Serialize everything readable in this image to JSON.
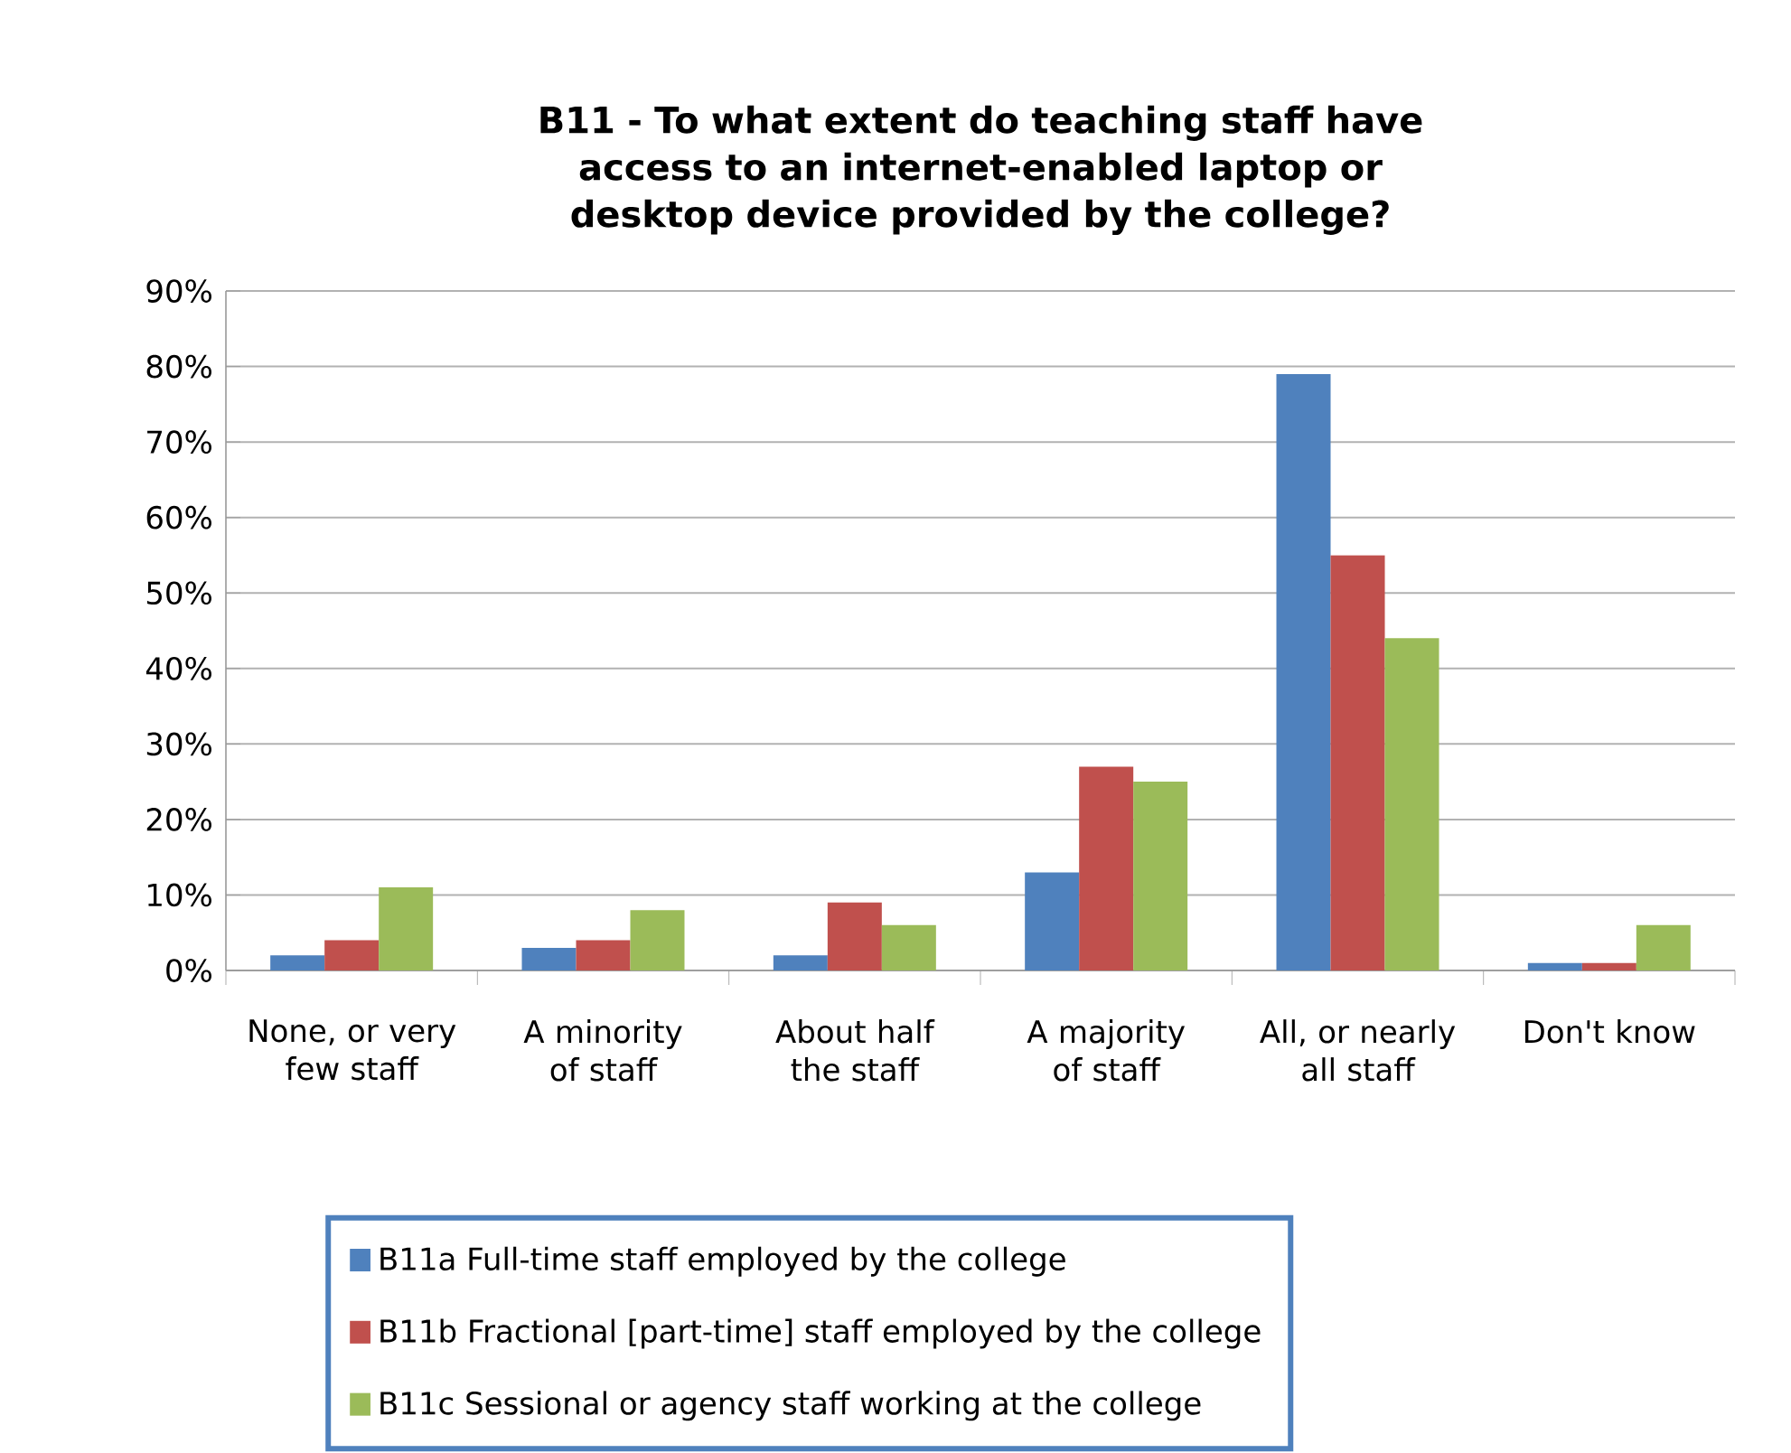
{
  "chart_data": {
    "type": "bar",
    "title": "B11 - To what extent do teaching staff have access to an internet-enabled laptop or desktop device provided by the college?",
    "categories": [
      "None, or very few staff",
      "A minority of staff",
      "About half the staff",
      "A majority of staff",
      "All, or nearly all staff",
      "Don't know"
    ],
    "series": [
      {
        "name": "B11a Full-time staff employed by the college",
        "color": "#4f81bd",
        "values": [
          2,
          3,
          2,
          13,
          79,
          1
        ]
      },
      {
        "name": "B11b Fractional [part-time] staff employed by the college",
        "color": "#c0504d",
        "values": [
          4,
          4,
          9,
          27,
          55,
          1
        ]
      },
      {
        "name": "B11c Sessional or agency staff working at the college",
        "color": "#9bbb59",
        "values": [
          11,
          8,
          6,
          25,
          44,
          6
        ]
      }
    ],
    "ylim": [
      0,
      90
    ],
    "yticks": [
      {
        "value": 0,
        "label": "0%"
      },
      {
        "value": 10,
        "label": "10%"
      },
      {
        "value": 20,
        "label": "20%"
      },
      {
        "value": 30,
        "label": "30%"
      },
      {
        "value": 40,
        "label": "40%"
      },
      {
        "value": 50,
        "label": "50%"
      },
      {
        "value": 60,
        "label": "60%"
      },
      {
        "value": 70,
        "label": "70%"
      },
      {
        "value": 80,
        "label": "80%"
      },
      {
        "value": 90,
        "label": "90%"
      }
    ],
    "grid": "y",
    "legend": "bottom"
  }
}
